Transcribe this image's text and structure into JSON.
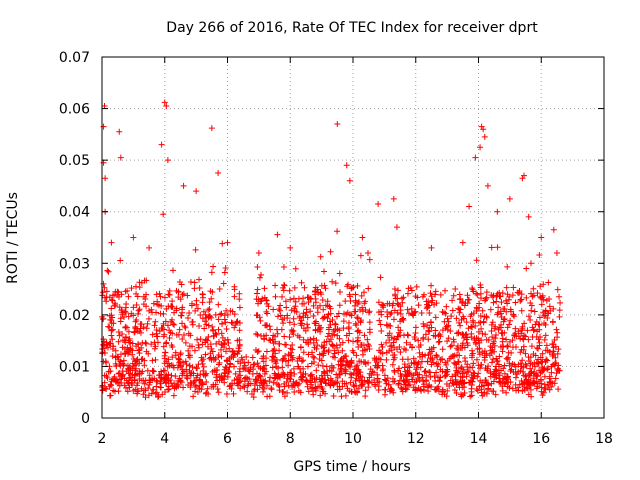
{
  "chart_data": {
    "type": "scatter",
    "title": "Day 266 of 2016, Rate Of TEC Index for receiver dprt",
    "xlabel": "GPS time / hours",
    "ylabel": "ROTI / TECUs",
    "xlim": [
      2,
      18
    ],
    "ylim": [
      0,
      0.07
    ],
    "x_ticks": [
      2,
      4,
      6,
      8,
      10,
      12,
      14,
      16,
      18
    ],
    "y_ticks": [
      0,
      0.01,
      0.02,
      0.03,
      0.04,
      0.05,
      0.06,
      0.07
    ],
    "x_tick_labels": [
      "2",
      "4",
      "6",
      "8",
      "10",
      "12",
      "14",
      "16",
      "18"
    ],
    "y_tick_labels": [
      "0",
      "0.01",
      "0.02",
      "0.03",
      "0.04",
      "0.05",
      "0.06",
      "0.07"
    ],
    "grid": true,
    "marker": "+",
    "color": "#ff0000",
    "series": [
      {
        "name": "ROTI",
        "x": [
          2.05,
          2.05,
          2.08,
          2.1,
          2.1,
          2.3,
          2.55,
          2.6,
          3.0,
          3.5,
          3.9,
          3.95,
          4.0,
          4.05,
          4.1,
          4.6,
          5.0,
          5.5,
          5.7,
          6.0,
          7.0,
          8.0,
          9.5,
          9.8,
          9.9,
          10.3,
          10.8,
          11.3,
          11.4,
          12.5,
          13.5,
          13.7,
          13.9,
          14.05,
          14.1,
          14.15,
          14.2,
          14.3,
          14.6,
          15.0,
          15.4,
          15.45,
          15.6,
          16.0,
          16.4,
          16.5
        ],
        "y": [
          0.0565,
          0.0495,
          0.0605,
          0.04,
          0.0465,
          0.034,
          0.0555,
          0.0505,
          0.035,
          0.033,
          0.053,
          0.0395,
          0.0612,
          0.0605,
          0.05,
          0.045,
          0.044,
          0.0562,
          0.0475,
          0.034,
          0.032,
          0.033,
          0.057,
          0.049,
          0.046,
          0.035,
          0.0415,
          0.0425,
          0.037,
          0.033,
          0.034,
          0.041,
          0.0505,
          0.0525,
          0.0565,
          0.056,
          0.0545,
          0.045,
          0.04,
          0.0425,
          0.0465,
          0.047,
          0.039,
          0.035,
          0.0365,
          0.032
        ]
      }
    ],
    "dense_band": {
      "x_range": [
        2.0,
        16.6
      ],
      "y_floor": 0.004,
      "y_center": 0.012,
      "y_spread": 0.02,
      "point_count": 2500
    }
  }
}
